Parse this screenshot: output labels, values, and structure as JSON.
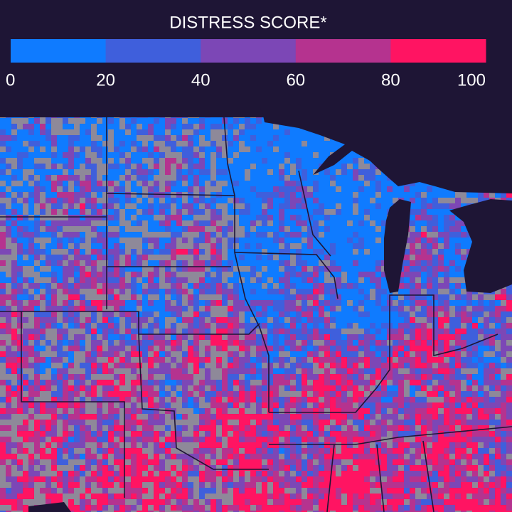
{
  "legend": {
    "title": "DISTRESS SCORE*",
    "colors": [
      "#0f7bff",
      "#3f5fdc",
      "#7c47b6",
      "#b5338f",
      "#ff1462"
    ],
    "ticks": [
      0,
      20,
      40,
      60,
      80,
      100
    ]
  }
}
